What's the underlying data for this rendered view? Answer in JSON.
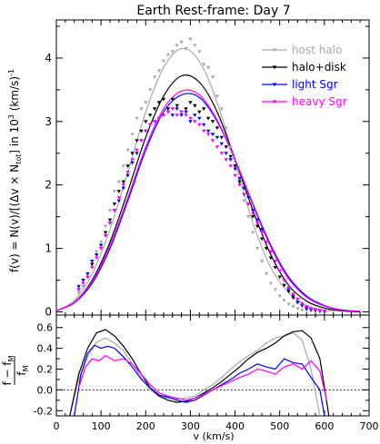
{
  "chart_data": [
    {
      "type": "line",
      "title": "Earth Rest-frame: Day 7",
      "ylabel_parts": {
        "main": "f(v)  =  N(v)/[(Δv × N",
        "sub": "tot",
        "close": "]   in 10",
        "sup": "3",
        "units": " (km/s)",
        "units_sup": "-1"
      },
      "xlim": [
        0,
        700
      ],
      "ylim": [
        -0.05,
        4.6
      ],
      "yticks": [
        0,
        1,
        2,
        3,
        4
      ],
      "legend_position": "top-right",
      "series": [
        {
          "name": "host halo",
          "color": "#aaaaaa",
          "curve_x": [
            0,
            40,
            80,
            120,
            160,
            200,
            240,
            280,
            320,
            360,
            400,
            440,
            480,
            520,
            560,
            600,
            640,
            680
          ],
          "curve_y": [
            0.02,
            0.18,
            0.6,
            1.3,
            2.2,
            3.15,
            3.85,
            4.15,
            3.95,
            3.3,
            2.35,
            1.4,
            0.7,
            0.3,
            0.1,
            0.03,
            0.01,
            0.0
          ],
          "points_x": [
            50,
            60,
            70,
            80,
            90,
            100,
            110,
            120,
            130,
            140,
            150,
            160,
            170,
            180,
            190,
            200,
            210,
            220,
            230,
            240,
            250,
            260,
            270,
            280,
            290,
            300,
            310,
            320,
            330,
            340,
            350,
            360,
            370,
            380,
            390,
            400,
            410,
            420,
            430,
            440,
            450,
            460,
            470,
            480,
            490,
            500,
            510,
            520,
            530,
            540,
            550,
            560,
            570,
            580,
            590,
            600
          ],
          "points_y": [
            0.3,
            0.4,
            0.55,
            0.75,
            0.95,
            1.1,
            1.35,
            1.6,
            1.9,
            2.05,
            2.3,
            2.55,
            2.8,
            3.05,
            3.2,
            3.3,
            3.5,
            3.7,
            3.8,
            3.95,
            4.05,
            4.1,
            4.2,
            4.25,
            4.15,
            4.3,
            4.2,
            4.1,
            3.9,
            3.85,
            3.7,
            3.4,
            3.2,
            2.9,
            2.6,
            2.3,
            2.05,
            1.75,
            1.5,
            1.25,
            1.0,
            0.8,
            0.6,
            0.45,
            0.35,
            0.25,
            0.18,
            0.12,
            0.08,
            0.05,
            0.03,
            0.02,
            0.02,
            0.01,
            0.01,
            0.0
          ]
        },
        {
          "name": "halo+disk",
          "color": "#000000",
          "curve_x": [
            0,
            40,
            80,
            120,
            160,
            200,
            240,
            280,
            320,
            360,
            400,
            440,
            480,
            520,
            560,
            600,
            640,
            680
          ],
          "curve_y": [
            0.02,
            0.15,
            0.5,
            1.1,
            1.9,
            2.75,
            3.4,
            3.72,
            3.62,
            3.15,
            2.4,
            1.6,
            0.9,
            0.42,
            0.17,
            0.06,
            0.02,
            0.0
          ],
          "points_x": [
            50,
            60,
            70,
            80,
            90,
            100,
            110,
            120,
            130,
            140,
            150,
            160,
            170,
            180,
            190,
            200,
            210,
            220,
            230,
            240,
            250,
            260,
            270,
            280,
            290,
            300,
            310,
            320,
            330,
            340,
            350,
            360,
            370,
            380,
            390,
            400,
            410,
            420,
            430,
            440,
            450,
            460,
            470,
            480,
            490,
            500,
            510,
            520,
            530,
            540,
            550,
            560,
            570,
            580,
            590,
            600
          ],
          "points_y": [
            0.35,
            0.5,
            0.55,
            0.75,
            0.9,
            1.05,
            1.25,
            1.45,
            1.7,
            1.9,
            2.05,
            2.3,
            2.5,
            2.7,
            2.85,
            3.0,
            3.1,
            3.2,
            3.3,
            3.35,
            3.2,
            3.35,
            3.25,
            3.15,
            3.2,
            3.3,
            3.25,
            3.15,
            3.2,
            3.05,
            3.0,
            2.9,
            2.75,
            2.6,
            2.45,
            2.3,
            2.05,
            1.85,
            1.7,
            1.5,
            1.35,
            1.15,
            1.0,
            0.85,
            0.7,
            0.55,
            0.42,
            0.32,
            0.22,
            0.15,
            0.1,
            0.06,
            0.04,
            0.03,
            0.02,
            0.01
          ]
        },
        {
          "name": "light Sgr",
          "color": "#0000ff",
          "curve_x": [
            0,
            40,
            80,
            120,
            160,
            200,
            240,
            280,
            320,
            360,
            400,
            440,
            480,
            520,
            560,
            600,
            640,
            680
          ],
          "curve_y": [
            0.02,
            0.14,
            0.45,
            1.0,
            1.75,
            2.55,
            3.15,
            3.42,
            3.38,
            3.0,
            2.4,
            1.7,
            1.05,
            0.55,
            0.25,
            0.1,
            0.03,
            0.01
          ],
          "points_x": [
            50,
            60,
            70,
            80,
            90,
            100,
            110,
            120,
            130,
            140,
            150,
            160,
            170,
            180,
            190,
            200,
            210,
            220,
            230,
            240,
            250,
            260,
            270,
            280,
            290,
            300,
            310,
            320,
            330,
            340,
            350,
            360,
            370,
            380,
            390,
            400,
            410,
            420,
            430,
            440,
            450,
            460,
            470,
            480,
            490,
            500,
            510,
            520,
            530,
            540,
            550,
            560,
            570,
            580,
            590,
            600
          ],
          "points_y": [
            0.4,
            0.5,
            0.6,
            0.8,
            0.9,
            1.05,
            1.2,
            1.4,
            1.6,
            1.75,
            1.95,
            2.15,
            2.35,
            2.5,
            2.7,
            2.85,
            2.95,
            3.0,
            3.05,
            3.1,
            3.15,
            3.1,
            3.2,
            3.1,
            3.15,
            3.0,
            3.1,
            3.05,
            2.95,
            2.85,
            2.8,
            2.75,
            2.65,
            2.5,
            2.4,
            2.25,
            2.1,
            1.95,
            1.8,
            1.6,
            1.45,
            1.3,
            1.1,
            0.95,
            0.8,
            0.65,
            0.5,
            0.35,
            0.25,
            0.15,
            0.1,
            0.05,
            0.03,
            0.02,
            0.01,
            0.0
          ]
        },
        {
          "name": "heavy Sgr",
          "color": "#ff00ff",
          "curve_x": [
            0,
            40,
            80,
            120,
            160,
            200,
            240,
            280,
            320,
            360,
            400,
            440,
            480,
            520,
            560,
            600,
            640,
            680
          ],
          "curve_y": [
            0.02,
            0.15,
            0.48,
            1.05,
            1.8,
            2.6,
            3.2,
            3.48,
            3.42,
            3.02,
            2.4,
            1.68,
            1.02,
            0.52,
            0.23,
            0.09,
            0.03,
            0.01
          ],
          "points_x": [
            50,
            60,
            70,
            80,
            90,
            100,
            110,
            120,
            130,
            140,
            150,
            160,
            170,
            180,
            190,
            200,
            210,
            220,
            230,
            240,
            250,
            260,
            270,
            280,
            290,
            300,
            310,
            320,
            330,
            340,
            350,
            360,
            370,
            380,
            390,
            400,
            410,
            420,
            430,
            440,
            450,
            460,
            470,
            480,
            490,
            500,
            510,
            520,
            530,
            540,
            550,
            560,
            570,
            580,
            590,
            600
          ],
          "points_y": [
            0.35,
            0.45,
            0.55,
            0.7,
            0.85,
            1.0,
            1.2,
            1.4,
            1.6,
            1.8,
            2.0,
            2.2,
            2.4,
            2.55,
            2.7,
            2.85,
            2.95,
            3.0,
            3.05,
            3.1,
            3.15,
            3.2,
            3.1,
            3.15,
            3.1,
            3.05,
            3.0,
            2.95,
            2.85,
            2.8,
            2.7,
            2.6,
            2.5,
            2.4,
            2.3,
            2.15,
            2.0,
            1.85,
            1.7,
            1.55,
            1.4,
            1.25,
            1.1,
            0.95,
            0.8,
            0.65,
            0.5,
            0.38,
            0.28,
            0.2,
            0.13,
            0.08,
            0.05,
            0.03,
            0.02,
            0.01
          ]
        }
      ]
    },
    {
      "type": "line",
      "xlabel": "v (km/s)",
      "ylabel_parts": {
        "num": "f − f",
        "num_sub": "M",
        "den": "f",
        "den_sub": "M"
      },
      "xlim": [
        0,
        700
      ],
      "ylim": [
        -0.25,
        0.72
      ],
      "xticks": [
        0,
        100,
        200,
        300,
        400,
        500,
        600,
        700
      ],
      "yticks": [
        -0.2,
        0.0,
        0.2,
        0.4,
        0.6
      ],
      "yticklabels": [
        "-0.2",
        "0.0",
        "0.2",
        "0.4",
        "0.6"
      ],
      "reference_line_y": 0.0,
      "series": [
        {
          "name": "host halo",
          "color": "#aaaaaa",
          "x": [
            30,
            50,
            70,
            90,
            110,
            130,
            150,
            170,
            190,
            210,
            230,
            250,
            270,
            290,
            310,
            330,
            350,
            370,
            390,
            410,
            430,
            450,
            470,
            490,
            510,
            530,
            550,
            570,
            590
          ],
          "y": [
            -0.25,
            0.1,
            0.32,
            0.46,
            0.5,
            0.45,
            0.38,
            0.25,
            0.12,
            0.0,
            -0.06,
            -0.08,
            -0.09,
            -0.08,
            -0.06,
            0.0,
            0.05,
            0.12,
            0.2,
            0.27,
            0.33,
            0.38,
            0.45,
            0.5,
            0.52,
            0.55,
            0.48,
            0.2,
            -0.25
          ]
        },
        {
          "name": "halo+disk",
          "color": "#000000",
          "x": [
            30,
            50,
            70,
            90,
            110,
            130,
            150,
            170,
            190,
            210,
            230,
            250,
            270,
            290,
            310,
            330,
            350,
            370,
            390,
            410,
            430,
            450,
            470,
            490,
            510,
            530,
            550,
            570,
            590,
            610
          ],
          "y": [
            -0.25,
            0.15,
            0.4,
            0.55,
            0.58,
            0.52,
            0.42,
            0.3,
            0.15,
            0.02,
            -0.06,
            -0.1,
            -0.12,
            -0.11,
            -0.08,
            -0.03,
            0.02,
            0.08,
            0.15,
            0.22,
            0.3,
            0.36,
            0.4,
            0.45,
            0.52,
            0.56,
            0.57,
            0.5,
            0.3,
            -0.25
          ]
        },
        {
          "name": "light Sgr",
          "color": "#0000ff",
          "x": [
            40,
            55,
            70,
            85,
            100,
            115,
            130,
            150,
            170,
            190,
            210,
            230,
            250,
            270,
            290,
            310,
            330,
            350,
            370,
            390,
            410,
            430,
            450,
            470,
            490,
            510,
            530,
            550,
            570,
            590,
            600
          ],
          "y": [
            -0.25,
            0.15,
            0.35,
            0.43,
            0.4,
            0.42,
            0.4,
            0.32,
            0.22,
            0.1,
            0.02,
            -0.05,
            -0.07,
            -0.1,
            -0.12,
            -0.1,
            -0.05,
            0.0,
            0.05,
            0.1,
            0.16,
            0.2,
            0.25,
            0.22,
            0.2,
            0.3,
            0.26,
            0.25,
            0.12,
            0.0,
            -0.25
          ]
        },
        {
          "name": "heavy Sgr",
          "color": "#ff00ff",
          "x": [
            50,
            65,
            80,
            95,
            110,
            130,
            150,
            170,
            190,
            210,
            230,
            250,
            270,
            290,
            310,
            330,
            350,
            370,
            390,
            410,
            430,
            450,
            470,
            490,
            510,
            530,
            550,
            570,
            590,
            605
          ],
          "y": [
            0.02,
            0.22,
            0.3,
            0.28,
            0.33,
            0.28,
            0.3,
            0.25,
            0.15,
            0.05,
            -0.03,
            -0.06,
            -0.08,
            -0.1,
            -0.08,
            -0.04,
            0.0,
            0.04,
            0.08,
            0.12,
            0.15,
            0.2,
            0.18,
            0.15,
            0.22,
            0.25,
            0.2,
            0.28,
            0.18,
            -0.1
          ]
        }
      ]
    }
  ]
}
